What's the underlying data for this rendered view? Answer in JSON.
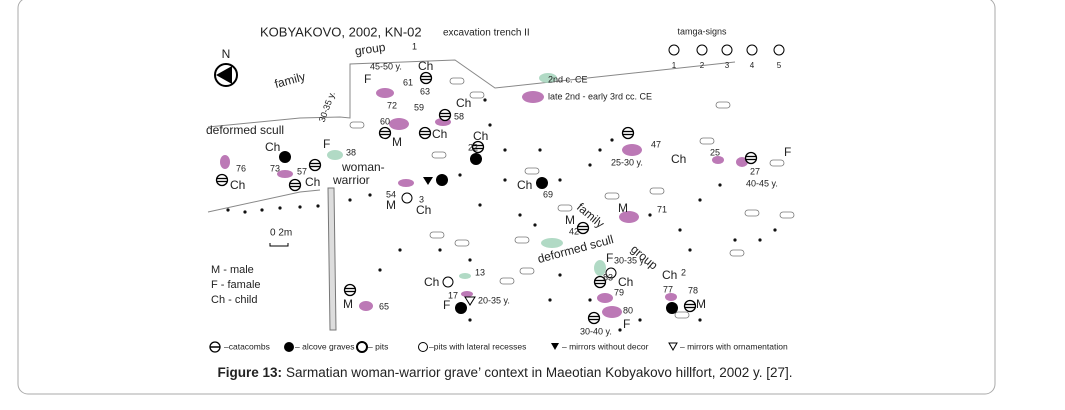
{
  "figure": {
    "map": {
      "title": "KOBYAKOVO, 2002, KN-02",
      "subtitle": "excavation trench II",
      "north": "N",
      "scale": "0  2m",
      "tamga_title": "tamga-signs",
      "tamga_numbers": [
        "1",
        "2",
        "3",
        "4",
        "5"
      ],
      "legend_dates": [
        "2nd c. CE",
        "late 2nd - early 3rd cc. CE"
      ],
      "key": [
        "M - male",
        "F - famale",
        "Ch - child"
      ],
      "annotations": [
        "group",
        "1",
        "family",
        "45-50 y.",
        "Ch",
        "F",
        "61",
        "63",
        "72",
        "59",
        "Ch",
        "58",
        "60",
        "M",
        "Ch",
        "Ch",
        "22",
        "deformed scull",
        "30-35 y.",
        "Ch",
        "F",
        "38",
        "76",
        "73",
        "57",
        "woman-",
        "warrior",
        "Ch",
        "Ch",
        "54",
        "M",
        "3",
        "Ch",
        "Ch",
        "69",
        "47",
        "25-30 y.",
        "Ch",
        "25",
        "F",
        "27",
        "40-45 y.",
        "M",
        "71",
        "family",
        "42",
        "M",
        "group",
        "deformed scull",
        "F",
        "30-35 y.",
        "Ch",
        "2",
        "Ch",
        "13",
        "17",
        "F",
        "20-35 y.",
        "83",
        "79",
        "Ch",
        "77",
        "78",
        "M",
        "80",
        "30-40 y.",
        "F",
        "M",
        "65"
      ],
      "symbol_legend": [
        "–catacombs",
        "– alcove graves",
        "– pits",
        "–pits with lateral recesses",
        "– mirrors without decor",
        "– mirrors with ornamentation"
      ]
    },
    "caption": {
      "label": "Figure 13:",
      "text": "Sarmatian woman-warrior grave’ context in Maeotian Kobyakovo hillfort, 2002 y. [27]."
    }
  }
}
